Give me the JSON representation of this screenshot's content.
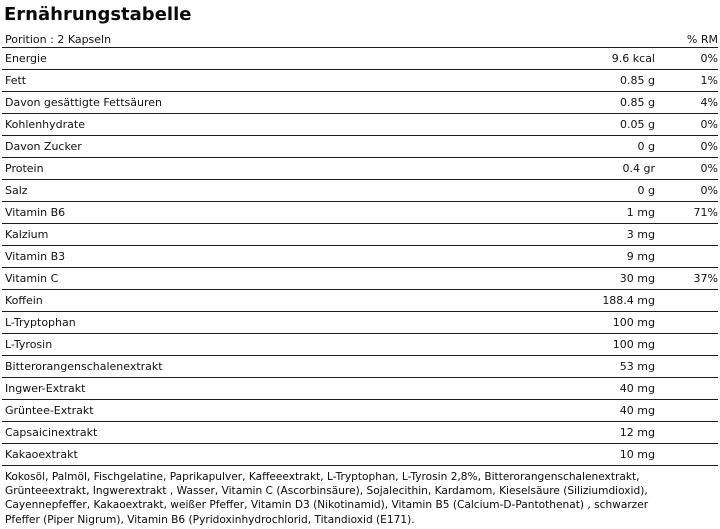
{
  "title": "Ernährungstabelle",
  "table": {
    "header": {
      "portion_label": "Porition : 2 Kapseln",
      "rm_label": "% RM"
    },
    "rows": [
      {
        "label": "Energie",
        "amount": "9.6 kcal",
        "percent": "0%"
      },
      {
        "label": "Fett",
        "amount": "0.85 g",
        "percent": "1%"
      },
      {
        "label": "Davon gesättigte Fettsäuren",
        "amount": "0.85 g",
        "percent": "4%"
      },
      {
        "label": "Kohlenhydrate",
        "amount": "0.05 g",
        "percent": "0%"
      },
      {
        "label": "Davon Zucker",
        "amount": "0 g",
        "percent": "0%"
      },
      {
        "label": "Protein",
        "amount": "0.4 gr",
        "percent": "0%"
      },
      {
        "label": "Salz",
        "amount": "0 g",
        "percent": "0%"
      },
      {
        "label": "Vitamin B6",
        "amount": "1 mg",
        "percent": "71%"
      },
      {
        "label": "Kalzium",
        "amount": "3 mg",
        "percent": ""
      },
      {
        "label": "Vitamin B3",
        "amount": "9 mg",
        "percent": ""
      },
      {
        "label": "Vitamin C",
        "amount": "30 mg",
        "percent": "37%"
      },
      {
        "label": "Koffein",
        "amount": "188.4 mg",
        "percent": ""
      },
      {
        "label": "L-Tryptophan",
        "amount": "100 mg",
        "percent": ""
      },
      {
        "label": "L-Tyrosin",
        "amount": "100 mg",
        "percent": ""
      },
      {
        "label": "Bitterorangenschalenextrakt",
        "amount": "53 mg",
        "percent": ""
      },
      {
        "label": "Ingwer-Extrakt",
        "amount": "40 mg",
        "percent": ""
      },
      {
        "label": "Grüntee-Extrakt",
        "amount": "40 mg",
        "percent": ""
      },
      {
        "label": "Capsaicinextrakt",
        "amount": "12 mg",
        "percent": ""
      },
      {
        "label": "Kakaoextrakt",
        "amount": "10 mg",
        "percent": ""
      }
    ]
  },
  "ingredients": {
    "lines": [
      "Kokosöl, Palmöl, Fischgelatine, Paprikapulver, Kaffeeextrakt, L-Tryptophan, L-Tyrosin 2,8%, Bitterorangenschalenextrakt,",
      "Grünteeextrakt, Ingwerextrakt , Wasser, Vitamin C (Ascorbinsäure), Sojalecithin, Kardamom, Kieselsäure (Siliziumdioxid),",
      "Cayennepfeffer, Kakaoextrakt, weißer Pfeffer, Vitamin D3 (Nikotinamid), Vitamin B5 (Calcium-D-Pantothenat) , schwarzer",
      "Pfeffer (Piper Nigrum), Vitamin B6 (Pyridoxinhydrochlorid, Titandioxid (E171)."
    ]
  }
}
